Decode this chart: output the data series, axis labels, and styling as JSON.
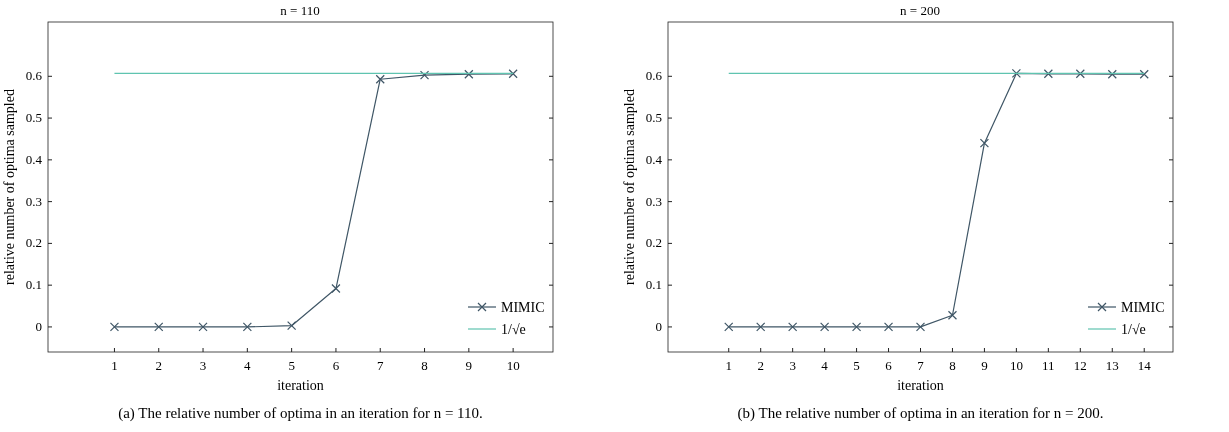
{
  "chart_data": [
    {
      "type": "line",
      "title": "n = 110",
      "xlabel": "iteration",
      "ylabel": "relative number of optima sampled",
      "x": [
        1,
        2,
        3,
        4,
        5,
        6,
        7,
        8,
        9,
        10
      ],
      "xlim": [
        -0.5,
        10.9
      ],
      "xticks": [
        1,
        2,
        3,
        4,
        5,
        6,
        7,
        8,
        9,
        10
      ],
      "ylim": [
        -0.06,
        0.73
      ],
      "yticks": [
        0,
        0.1,
        0.2,
        0.3,
        0.4,
        0.5,
        0.6
      ],
      "legend": "bottom right",
      "grid": false,
      "annotations": [
        "(a) The relative number of optima in an iteration for n = 110."
      ],
      "series": [
        {
          "name": "MIMIC",
          "color": "#3f5666",
          "marker": "cross",
          "values": [
            0,
            0,
            0,
            0,
            0.003,
            0.092,
            0.593,
            0.603,
            0.605,
            0.606
          ]
        },
        {
          "name": "1/√e",
          "color": "#5fc4b0",
          "marker": "none",
          "x": [
            1,
            10
          ],
          "values": [
            0.607,
            0.607
          ]
        }
      ]
    },
    {
      "type": "line",
      "title": "n = 200",
      "xlabel": "iteration",
      "ylabel": "relative number of optima sampled",
      "x": [
        1,
        2,
        3,
        4,
        5,
        6,
        7,
        8,
        9,
        10,
        11,
        12,
        13,
        14
      ],
      "xlim": [
        -0.9,
        14.9
      ],
      "xticks": [
        1,
        2,
        3,
        4,
        5,
        6,
        7,
        8,
        9,
        10,
        11,
        12,
        13,
        14
      ],
      "ylim": [
        -0.06,
        0.73
      ],
      "yticks": [
        0,
        0.1,
        0.2,
        0.3,
        0.4,
        0.5,
        0.6
      ],
      "legend": "bottom right",
      "grid": false,
      "annotations": [
        "(b) The relative number of optima in an iteration for n = 200."
      ],
      "series": [
        {
          "name": "MIMIC",
          "color": "#3f5666",
          "marker": "cross",
          "values": [
            0,
            0,
            0,
            0,
            0,
            0,
            0,
            0.028,
            0.44,
            0.607,
            0.606,
            0.606,
            0.605,
            0.605
          ]
        },
        {
          "name": "1/√e",
          "color": "#5fc4b0",
          "marker": "none",
          "x": [
            1,
            14
          ],
          "values": [
            0.607,
            0.607
          ]
        }
      ]
    }
  ]
}
